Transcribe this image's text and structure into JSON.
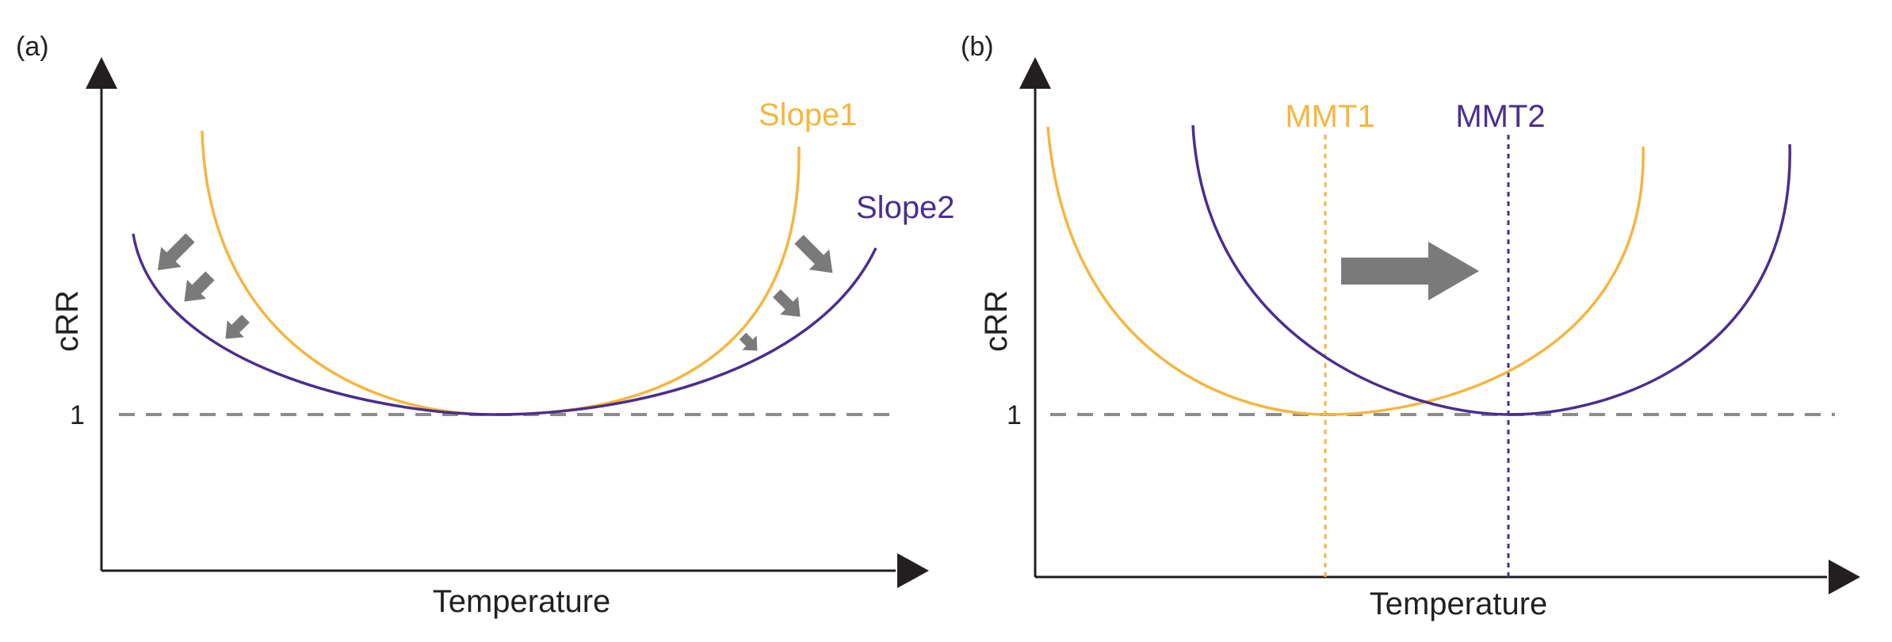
{
  "colors": {
    "curve1": "#f5b63e",
    "curve2": "#4a2e8e",
    "axis": "#231f20",
    "reference": "#8c8c8c",
    "arrow": "#7a7a7a"
  },
  "panels": [
    {
      "id": "a",
      "label": "(a)",
      "ylabel": "cRR",
      "xlabel": "Temperature",
      "reference_label": "1",
      "curves": [
        {
          "label": "Slope1",
          "color": "#f5b63e"
        },
        {
          "label": "Slope2",
          "color": "#4a2e8e"
        }
      ],
      "annotation": "arrows point from Slope1 toward Slope2 (flatter slope)"
    },
    {
      "id": "b",
      "label": "(b)",
      "ylabel": "cRR",
      "xlabel": "Temperature",
      "reference_label": "1",
      "curves": [
        {
          "label": "MMT1",
          "color": "#f5b63e"
        },
        {
          "label": "MMT2",
          "color": "#4a2e8e"
        }
      ],
      "annotation": "arrow points right: MMT shifts from MMT1 to MMT2"
    }
  ]
}
